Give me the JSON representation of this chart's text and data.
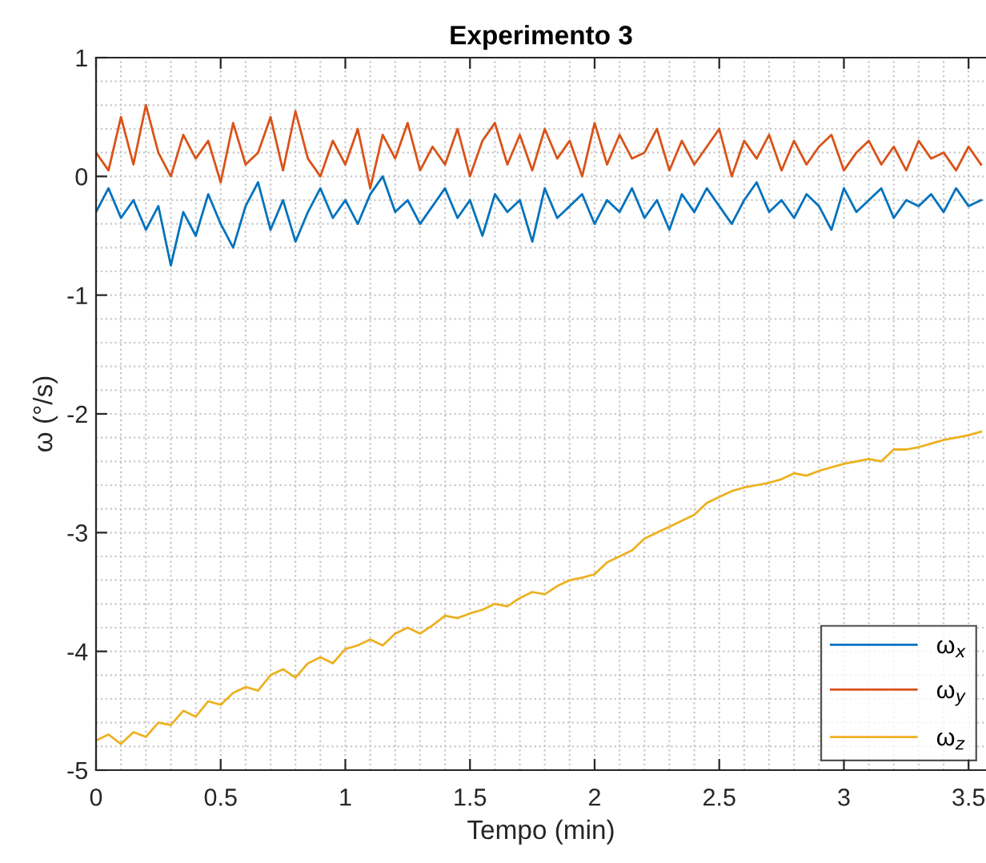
{
  "chart_data": {
    "type": "line",
    "title": "Experimento 3",
    "xlabel": "Tempo (min)",
    "ylabel": "ω (°/s)",
    "x": [
      0,
      0.05,
      0.1,
      0.15,
      0.2,
      0.25,
      0.3,
      0.35,
      0.4,
      0.45,
      0.5,
      0.55,
      0.6,
      0.65,
      0.7,
      0.75,
      0.8,
      0.85,
      0.9,
      0.95,
      1.0,
      1.05,
      1.1,
      1.15,
      1.2,
      1.25,
      1.3,
      1.35,
      1.4,
      1.45,
      1.5,
      1.55,
      1.6,
      1.65,
      1.7,
      1.75,
      1.8,
      1.85,
      1.9,
      1.95,
      2.0,
      2.05,
      2.1,
      2.15,
      2.2,
      2.25,
      2.3,
      2.35,
      2.4,
      2.45,
      2.5,
      2.55,
      2.6,
      2.65,
      2.7,
      2.75,
      2.8,
      2.85,
      2.9,
      2.95,
      3.0,
      3.05,
      3.1,
      3.15,
      3.2,
      3.25,
      3.3,
      3.35,
      3.4,
      3.45,
      3.5,
      3.55
    ],
    "series": [
      {
        "name": "ω$_{x}$",
        "color": "#0072bd",
        "values": [
          -0.3,
          -0.1,
          -0.35,
          -0.2,
          -0.45,
          -0.25,
          -0.75,
          -0.3,
          -0.5,
          -0.15,
          -0.4,
          -0.6,
          -0.25,
          -0.05,
          -0.45,
          -0.2,
          -0.55,
          -0.3,
          -0.1,
          -0.35,
          -0.2,
          -0.4,
          -0.15,
          0.0,
          -0.3,
          -0.2,
          -0.4,
          -0.25,
          -0.1,
          -0.35,
          -0.2,
          -0.5,
          -0.15,
          -0.3,
          -0.2,
          -0.55,
          -0.1,
          -0.35,
          -0.25,
          -0.15,
          -0.4,
          -0.2,
          -0.3,
          -0.1,
          -0.35,
          -0.2,
          -0.45,
          -0.15,
          -0.3,
          -0.1,
          -0.25,
          -0.4,
          -0.2,
          -0.05,
          -0.3,
          -0.2,
          -0.35,
          -0.15,
          -0.25,
          -0.45,
          -0.1,
          -0.3,
          -0.2,
          -0.1,
          -0.35,
          -0.2,
          -0.25,
          -0.15,
          -0.3,
          -0.1,
          -0.25,
          -0.2
        ]
      },
      {
        "name": "ω$_{y}$",
        "color": "#d95319",
        "values": [
          0.2,
          0.05,
          0.5,
          0.1,
          0.6,
          0.2,
          0.0,
          0.35,
          0.15,
          0.3,
          -0.05,
          0.45,
          0.1,
          0.2,
          0.5,
          0.05,
          0.55,
          0.15,
          0.0,
          0.3,
          0.1,
          0.4,
          -0.1,
          0.35,
          0.15,
          0.45,
          0.05,
          0.25,
          0.1,
          0.4,
          0.0,
          0.3,
          0.45,
          0.1,
          0.35,
          0.05,
          0.4,
          0.15,
          0.3,
          0.0,
          0.45,
          0.1,
          0.35,
          0.15,
          0.2,
          0.4,
          0.05,
          0.3,
          0.1,
          0.25,
          0.4,
          0.0,
          0.3,
          0.15,
          0.35,
          0.05,
          0.3,
          0.1,
          0.25,
          0.35,
          0.05,
          0.2,
          0.3,
          0.1,
          0.25,
          0.05,
          0.3,
          0.15,
          0.2,
          0.05,
          0.25,
          0.1
        ]
      },
      {
        "name": "ω$_{z}$",
        "color": "#edb120",
        "values": [
          -4.75,
          -4.7,
          -4.78,
          -4.68,
          -4.72,
          -4.6,
          -4.62,
          -4.5,
          -4.55,
          -4.42,
          -4.45,
          -4.35,
          -4.3,
          -4.33,
          -4.2,
          -4.15,
          -4.22,
          -4.1,
          -4.05,
          -4.1,
          -3.98,
          -3.95,
          -3.9,
          -3.95,
          -3.85,
          -3.8,
          -3.85,
          -3.78,
          -3.7,
          -3.72,
          -3.68,
          -3.65,
          -3.6,
          -3.62,
          -3.55,
          -3.5,
          -3.52,
          -3.45,
          -3.4,
          -3.38,
          -3.35,
          -3.25,
          -3.2,
          -3.15,
          -3.05,
          -3.0,
          -2.95,
          -2.9,
          -2.85,
          -2.75,
          -2.7,
          -2.65,
          -2.62,
          -2.6,
          -2.58,
          -2.55,
          -2.5,
          -2.52,
          -2.48,
          -2.45,
          -2.42,
          -2.4,
          -2.38,
          -2.4,
          -2.3,
          -2.3,
          -2.28,
          -2.25,
          -2.22,
          -2.2,
          -2.18,
          -2.15
        ]
      }
    ],
    "xlim": [
      0,
      3.57
    ],
    "ylim": [
      -5,
      1
    ],
    "xticks": [
      0,
      0.5,
      1,
      1.5,
      2,
      2.5,
      3,
      3.5
    ],
    "yticks": [
      -5,
      -4,
      -3,
      -2,
      -1,
      0,
      1
    ],
    "grid": true,
    "legend": "bottom right",
    "line_style": "solid",
    "marker": "none"
  }
}
